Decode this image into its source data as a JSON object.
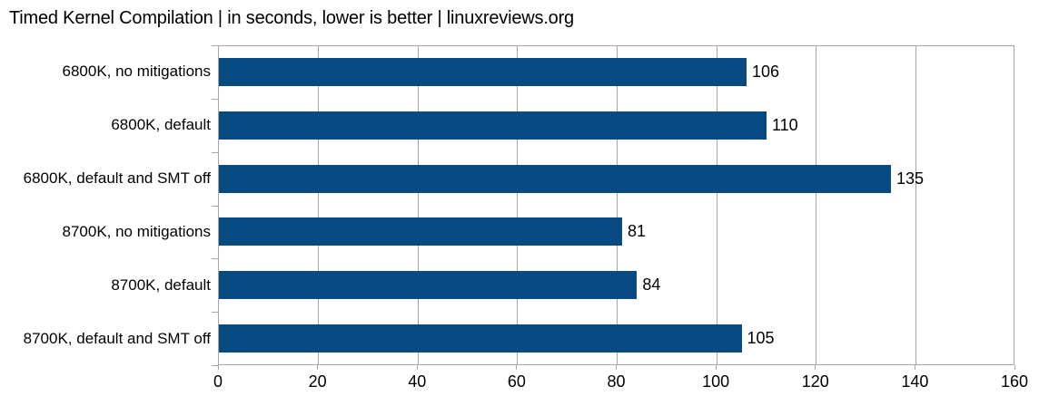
{
  "title": "Timed Kernel Compilation | in seconds, lower is better | linuxreviews.org",
  "colors": {
    "bar": "#074a82",
    "grid": "#a6a6a6",
    "axis": "#a6a6a6",
    "text": "#000000",
    "background": "#ffffff"
  },
  "chart_data": {
    "type": "bar",
    "orientation": "horizontal",
    "title": "Timed Kernel Compilation | in seconds, lower is better | linuxreviews.org",
    "categories": [
      "6800K, no mitigations",
      "6800K, default",
      "6800K, default and SMT off",
      "8700K, no mitigations",
      "8700K, default",
      "8700K, default and SMT off"
    ],
    "values": [
      106,
      110,
      135,
      81,
      84,
      105
    ],
    "data_labels": [
      "106",
      "110",
      "135",
      "81",
      "84",
      "105"
    ],
    "xlabel": "",
    "ylabel": "",
    "xlim": [
      0,
      160
    ],
    "xticks": [
      0,
      20,
      40,
      60,
      80,
      100,
      120,
      140,
      160
    ],
    "grid": "vertical",
    "legend": "none"
  }
}
